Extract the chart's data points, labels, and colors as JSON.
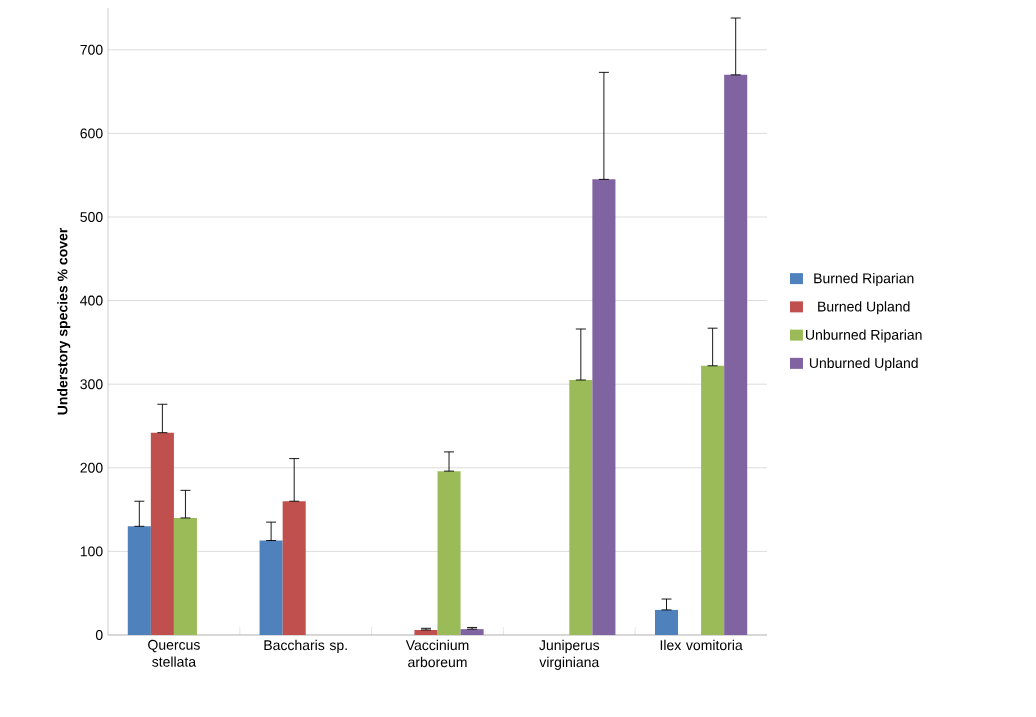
{
  "chart_data": {
    "type": "bar",
    "ylabel": "Understory species % cover",
    "categories": [
      "Quercus stellata",
      "Baccharis sp.",
      "Vaccinium arboreum",
      "Juniperus virginiana",
      "Ilex vomitoria"
    ],
    "series": [
      {
        "name": "Burned Riparian",
        "color": "#4f81bd",
        "values": [
          130,
          113,
          0,
          0,
          30
        ],
        "errors": [
          [
            130,
            160
          ],
          [
            113,
            135
          ],
          null,
          null,
          [
            30,
            43
          ]
        ]
      },
      {
        "name": "Burned Upland",
        "color": "#c0504d",
        "values": [
          242,
          160,
          6,
          0,
          0
        ],
        "errors": [
          [
            242,
            276
          ],
          [
            160,
            211
          ],
          [
            6,
            8
          ],
          null,
          null
        ]
      },
      {
        "name": "Unburned Riparian",
        "color": "#9bbb59",
        "values": [
          140,
          0,
          196,
          305,
          322
        ],
        "errors": [
          [
            140,
            173
          ],
          null,
          [
            196,
            219
          ],
          [
            305,
            366
          ],
          [
            322,
            367
          ]
        ]
      },
      {
        "name": "Unburned Upland",
        "color": "#8064a2",
        "values": [
          0,
          0,
          7,
          545,
          670
        ],
        "errors": [
          null,
          null,
          [
            7,
            9
          ],
          [
            545,
            673
          ],
          [
            670,
            738
          ]
        ]
      }
    ],
    "ylim": [
      0,
      750
    ],
    "yticks": [
      0,
      100,
      200,
      300,
      400,
      500,
      600,
      700
    ],
    "grid": "y",
    "legend": "right"
  }
}
